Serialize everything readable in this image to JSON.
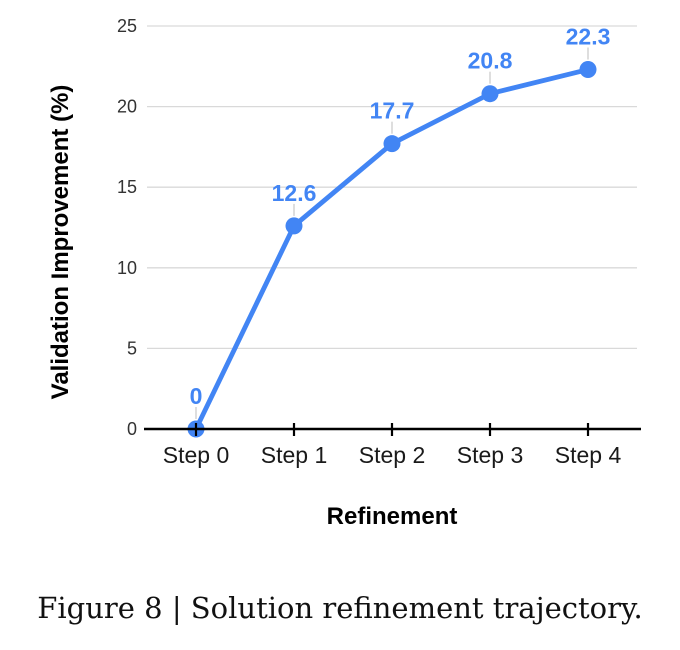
{
  "figure": {
    "caption": "Figure 8 | Solution refinement trajectory."
  },
  "chart_data": {
    "type": "line",
    "categories": [
      "Step 0",
      "Step 1",
      "Step 2",
      "Step 3",
      "Step 4"
    ],
    "series": [
      {
        "name": "Validation Improvement",
        "values": [
          0,
          12.6,
          17.7,
          20.8,
          22.3
        ],
        "labels": [
          "0",
          "12.6",
          "17.7",
          "20.8",
          "22.3"
        ],
        "color": "#4285f4"
      }
    ],
    "xlabel": "Refinement",
    "ylabel": "Validation Improvement (%)",
    "ylim": [
      0,
      25
    ],
    "yticks": [
      0,
      5,
      10,
      15,
      20,
      25
    ],
    "grid": true,
    "legend_position": "none",
    "style": {
      "gridline_color": "#d9d9d9",
      "axis_color": "#000000",
      "y_tick_label_color": "#333333",
      "x_tick_label_color": "#1a1a1a",
      "axis_title_color": "#000000",
      "leader_line_color": "#d5d5d5",
      "background": "#ffffff"
    }
  }
}
